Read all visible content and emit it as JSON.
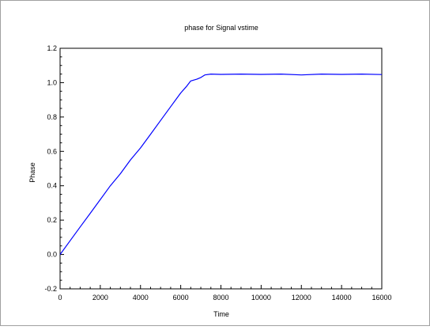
{
  "chart_data": {
    "type": "line",
    "title": "phase for Signal vstime",
    "xlabel": "Time",
    "ylabel": "Phase",
    "xlim": [
      0,
      16000
    ],
    "ylim": [
      -0.2,
      1.2
    ],
    "x_ticks": [
      0,
      2000,
      4000,
      6000,
      8000,
      10000,
      12000,
      14000,
      16000
    ],
    "x_tick_labels": [
      "0",
      "2000",
      "4000",
      "6000",
      "8000",
      "10000",
      "12000",
      "14000",
      "16000"
    ],
    "y_ticks": [
      -0.2,
      0.0,
      0.2,
      0.4,
      0.6,
      0.8,
      1.0,
      1.2
    ],
    "y_tick_labels": [
      "-0.2",
      "0.0",
      "0.2",
      "0.4",
      "0.6",
      "0.8",
      "1.0",
      "1.2"
    ],
    "grid": false,
    "legend": "none",
    "series": [
      {
        "color": "#0000ff",
        "x": [
          0,
          500,
          1000,
          1500,
          2000,
          2500,
          3000,
          3500,
          4000,
          4500,
          5000,
          5500,
          6000,
          6300,
          6500,
          6800,
          7000,
          7200,
          7500,
          8000,
          9000,
          10000,
          11000,
          12000,
          13000,
          14000,
          15000,
          16000
        ],
        "y": [
          0.0,
          0.08,
          0.16,
          0.24,
          0.32,
          0.4,
          0.47,
          0.55,
          0.62,
          0.7,
          0.78,
          0.86,
          0.94,
          0.98,
          1.01,
          1.02,
          1.03,
          1.045,
          1.05,
          1.048,
          1.05,
          1.048,
          1.05,
          1.045,
          1.05,
          1.048,
          1.05,
          1.047
        ]
      }
    ]
  },
  "colors": {
    "series": "#0000ff",
    "frame": "#000000",
    "figure_border": "#a0a0a0",
    "background": "#ffffff"
  }
}
